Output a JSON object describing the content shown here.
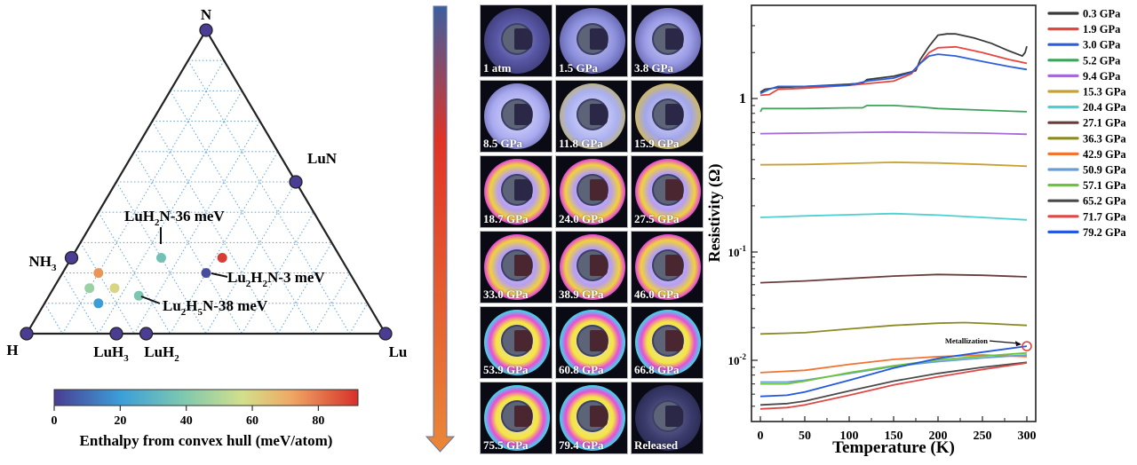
{
  "ternary": {
    "vertices": {
      "top": "N",
      "left": "H",
      "right": "Lu"
    },
    "stable_phases": [
      {
        "label": "N",
        "comp": [
          0,
          1,
          0
        ]
      },
      {
        "label": "H",
        "comp": [
          1,
          0,
          0
        ]
      },
      {
        "label": "Lu",
        "comp": [
          0,
          0,
          1
        ]
      },
      {
        "label": "LuN",
        "comp": [
          0,
          0.5,
          0.5
        ]
      },
      {
        "label": "NH",
        "sub": "3",
        "comp": [
          0.75,
          0.25,
          0
        ]
      },
      {
        "label": "LuH",
        "sub": "3",
        "comp": [
          0.75,
          0,
          0.25
        ]
      },
      {
        "label": "LuH",
        "sub": "2",
        "comp": [
          0.667,
          0,
          0.333
        ]
      }
    ],
    "metastable_points": [
      {
        "energy": 36,
        "comp": [
          0.5,
          0.25,
          0.25
        ],
        "label": "LuH2N-36 meV",
        "annotated": true
      },
      {
        "energy": 3,
        "comp": [
          0.4,
          0.2,
          0.4
        ],
        "label": "Lu2H2N-3 meV",
        "annotated": true
      },
      {
        "energy": 38,
        "comp": [
          0.625,
          0.125,
          0.25
        ],
        "label": "Lu2H5N-38 meV",
        "annotated": true
      },
      {
        "energy": 90,
        "comp": [
          0.33,
          0.25,
          0.42
        ],
        "annotated": false
      },
      {
        "energy": 75,
        "comp": [
          0.7,
          0.2,
          0.1
        ],
        "annotated": false
      },
      {
        "energy": 45,
        "comp": [
          0.75,
          0.15,
          0.1
        ],
        "annotated": false
      },
      {
        "energy": 60,
        "comp": [
          0.68,
          0.15,
          0.17
        ],
        "annotated": false
      },
      {
        "energy": 20,
        "comp": [
          0.75,
          0.1,
          0.15
        ],
        "annotated": false
      }
    ],
    "annotations": [
      {
        "parts": [
          [
            "LuH",
            ""
          ],
          [
            "2",
            "sub"
          ],
          [
            "N-36 meV",
            ""
          ]
        ]
      },
      {
        "parts": [
          [
            "Lu",
            ""
          ],
          [
            "2",
            "sub"
          ],
          [
            "H",
            ""
          ],
          [
            "2",
            "sub"
          ],
          [
            "N-3 meV",
            ""
          ]
        ]
      },
      {
        "parts": [
          [
            "Lu",
            ""
          ],
          [
            "2",
            "sub"
          ],
          [
            "H",
            ""
          ],
          [
            "5",
            "sub"
          ],
          [
            "N-38 meV",
            ""
          ]
        ]
      }
    ],
    "colorbar": {
      "ticks": [
        "0",
        "20",
        "40",
        "60",
        "80"
      ],
      "range": [
        0,
        92
      ],
      "title": "Enthalpy from convex hull (meV/atom)"
    }
  },
  "photos": {
    "labels": [
      "1 atm",
      "1.5 GPa",
      "3.8 GPa",
      "8.5 GPa",
      "11.8 GPa",
      "15.9 GPa",
      "18.7 GPa",
      "24.0 GPa",
      "27.5 GPa",
      "33.0 GPa",
      "38.9 GPa",
      "46.0 GPa",
      "53.9 GPa",
      "60.8 GPa",
      "66.8 GPa",
      "75.5 GPa",
      "79.4 GPa",
      "Released"
    ]
  },
  "chart_data": {
    "type": "line",
    "title": "",
    "xlabel": "Temperature (K)",
    "ylabel": "Resistivity (Ω)",
    "yscale": "log",
    "xlim": [
      -5,
      305
    ],
    "ylim": [
      0.004,
      4.5
    ],
    "xticks": [
      0,
      50,
      100,
      150,
      200,
      250,
      300
    ],
    "yticks": [
      {
        "value": 1,
        "label": "1"
      },
      {
        "value": 0.1,
        "label": "10",
        "exp": "-1"
      },
      {
        "value": 0.01,
        "label": "10",
        "exp": "-2"
      }
    ],
    "legend_position": "outside-right",
    "annotation": {
      "text": "Metallization",
      "x": 300,
      "y": 0.0135
    },
    "series": [
      {
        "name": "0.3 GPa",
        "color": "#3a3a3a",
        "x": [
          0,
          5,
          20,
          50,
          100,
          115,
          120,
          150,
          175,
          180,
          190,
          200,
          210,
          220,
          240,
          260,
          280,
          295,
          298,
          300
        ],
        "y": [
          1.1,
          1.15,
          1.18,
          1.2,
          1.24,
          1.26,
          1.33,
          1.4,
          1.52,
          1.8,
          2.2,
          2.6,
          2.65,
          2.65,
          2.5,
          2.3,
          2.05,
          1.9,
          2.0,
          2.2
        ]
      },
      {
        "name": "1.9 GPa",
        "color": "#e8453c",
        "x": [
          0,
          10,
          20,
          50,
          100,
          150,
          170,
          180,
          190,
          200,
          220,
          250,
          280,
          300
        ],
        "y": [
          1.05,
          1.06,
          1.15,
          1.17,
          1.22,
          1.3,
          1.45,
          1.7,
          2.0,
          2.15,
          2.18,
          2.0,
          1.8,
          1.7
        ]
      },
      {
        "name": "3.0 GPa",
        "color": "#2b5fd9",
        "x": [
          0,
          10,
          20,
          50,
          100,
          120,
          150,
          170,
          180,
          190,
          200,
          220,
          250,
          280,
          300
        ],
        "y": [
          1.08,
          1.15,
          1.2,
          1.2,
          1.22,
          1.3,
          1.36,
          1.48,
          1.7,
          1.9,
          1.95,
          1.9,
          1.75,
          1.62,
          1.55
        ]
      },
      {
        "name": "5.2 GPa",
        "color": "#3fa35c",
        "x": [
          0,
          2,
          50,
          100,
          115,
          120,
          150,
          180,
          200,
          250,
          300
        ],
        "y": [
          0.82,
          0.86,
          0.86,
          0.87,
          0.87,
          0.9,
          0.9,
          0.88,
          0.86,
          0.84,
          0.82
        ]
      },
      {
        "name": "9.4 GPa",
        "color": "#a56ad8",
        "x": [
          0,
          50,
          100,
          150,
          200,
          250,
          300
        ],
        "y": [
          0.59,
          0.595,
          0.6,
          0.605,
          0.6,
          0.595,
          0.585
        ]
      },
      {
        "name": "15.3 GPa",
        "color": "#c9a032",
        "x": [
          0,
          50,
          100,
          150,
          200,
          250,
          300
        ],
        "y": [
          0.37,
          0.372,
          0.378,
          0.384,
          0.38,
          0.372,
          0.362
        ]
      },
      {
        "name": "20.4 GPa",
        "color": "#4ecfd0",
        "x": [
          0,
          50,
          100,
          150,
          200,
          250,
          300
        ],
        "y": [
          0.168,
          0.172,
          0.175,
          0.178,
          0.174,
          0.168,
          0.162
        ]
      },
      {
        "name": "27.1 GPa",
        "color": "#6b3c3c",
        "x": [
          0,
          50,
          100,
          150,
          200,
          250,
          300
        ],
        "y": [
          0.052,
          0.054,
          0.057,
          0.06,
          0.062,
          0.061,
          0.059
        ]
      },
      {
        "name": "36.3 GPa",
        "color": "#8c8a24",
        "x": [
          0,
          50,
          100,
          150,
          200,
          230,
          260,
          300
        ],
        "y": [
          0.0175,
          0.018,
          0.0195,
          0.021,
          0.022,
          0.0223,
          0.0218,
          0.021
        ]
      },
      {
        "name": "42.9 GPa",
        "color": "#f07432",
        "x": [
          0,
          50,
          100,
          150,
          200,
          250,
          300
        ],
        "y": [
          0.0083,
          0.0086,
          0.0094,
          0.0102,
          0.0108,
          0.0112,
          0.0108
        ]
      },
      {
        "name": "50.9 GPa",
        "color": "#6a9fd6",
        "x": [
          0,
          30,
          50,
          100,
          150,
          200,
          250,
          300
        ],
        "y": [
          0.0072,
          0.0072,
          0.0074,
          0.0082,
          0.0091,
          0.0098,
          0.0105,
          0.0112
        ]
      },
      {
        "name": "57.1 GPa",
        "color": "#6cc43a",
        "x": [
          0,
          30,
          50,
          100,
          150,
          200,
          250,
          300
        ],
        "y": [
          0.007,
          0.007,
          0.0073,
          0.0083,
          0.0092,
          0.0101,
          0.0109,
          0.0117
        ]
      },
      {
        "name": "65.2 GPa",
        "color": "#4a4a4a",
        "x": [
          0,
          30,
          50,
          100,
          150,
          200,
          250,
          300
        ],
        "y": [
          0.0051,
          0.0052,
          0.0054,
          0.0063,
          0.0073,
          0.0082,
          0.009,
          0.0097
        ]
      },
      {
        "name": "71.7 GPa",
        "color": "#e04848",
        "x": [
          0,
          30,
          50,
          100,
          150,
          200,
          250,
          300
        ],
        "y": [
          0.0048,
          0.0049,
          0.0051,
          0.0059,
          0.0069,
          0.0078,
          0.0087,
          0.0096
        ]
      },
      {
        "name": "79.2 GPa",
        "color": "#2458de",
        "x": [
          0,
          30,
          50,
          100,
          150,
          200,
          250,
          300
        ],
        "y": [
          0.0058,
          0.0059,
          0.0062,
          0.0074,
          0.0089,
          0.0104,
          0.0119,
          0.0135
        ]
      }
    ]
  }
}
